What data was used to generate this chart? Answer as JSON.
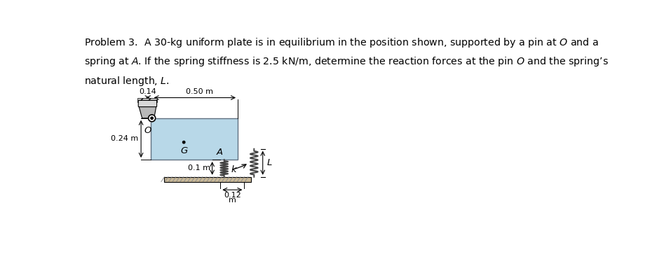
{
  "plate_color": "#b8d8e8",
  "plate_edge_color": "#888888",
  "wall_color": "#b0b0b0",
  "ground_color": "#c0b090",
  "spring_color": "#444444",
  "bg_color": "#ffffff",
  "title_lines": [
    "Problem 3.  A 30-kg uniform plate is in equilibrium in the position shown, supported by a pin at $\\it{O}$ and a",
    "spring at $\\it{A}$. If the spring stiffness is 2.5 kN/m, determine the reaction forces at the pin $\\it{O}$ and the spring’s",
    "natural length, $\\it{L}$."
  ],
  "label_O": "O",
  "label_G": "G",
  "label_A": "A",
  "label_k": "k",
  "label_L": "L",
  "dim_014": "0.14",
  "dim_m1": "m",
  "dim_050m": "0.50 m",
  "dim_024m": "0.24 m",
  "dim_01m": "0.1 m",
  "dim_012": "0.12",
  "dim_m2": "m"
}
